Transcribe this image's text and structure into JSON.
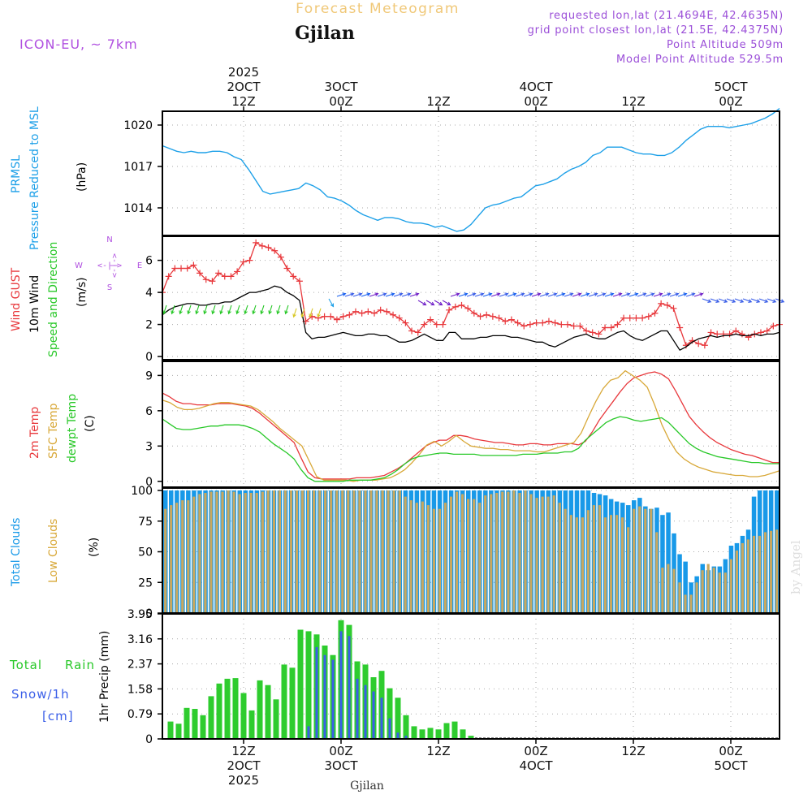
{
  "header": {
    "title": "Forecast Meteogram",
    "location": "Gjilan",
    "model": "ICON-EU, ~ 7km",
    "requested": "requested lon,lat (21.4694E, 42.4635N)",
    "grid_point": "grid point closest lon,lat (21.5E, 42.4375N)",
    "point_altitude": "Point Altitude 509m",
    "model_altitude": "Model Point Altitude 529.5m",
    "footer_location": "Gjilan",
    "credit": "by Angel"
  },
  "colors": {
    "pressure": "#1da0e8",
    "gust": "#e8383c",
    "wind10m": "#000000",
    "temp2m": "#e8383c",
    "sfc_temp": "#d8a838",
    "dewpoint": "#28c828",
    "total_cloud": "#1899e8",
    "low_cloud": "#c8a860",
    "rain": "#2ecc2e",
    "snow": "#3a5ee8",
    "label_purple": "#9b4fd8",
    "compass": "#b050e0"
  },
  "time_axis": {
    "top_labels": [
      {
        "t": 12,
        "lines": [
          "2025",
          "2OCT",
          "12Z"
        ]
      },
      {
        "t": 24,
        "lines": [
          "3OCT",
          "00Z"
        ]
      },
      {
        "t": 36,
        "lines": [
          "12Z"
        ]
      },
      {
        "t": 48,
        "lines": [
          "4OCT",
          "00Z"
        ]
      },
      {
        "t": 60,
        "lines": [
          "12Z"
        ]
      },
      {
        "t": 72,
        "lines": [
          "5OCT",
          "00Z"
        ]
      }
    ],
    "bottom_labels": [
      {
        "t": 12,
        "lines": [
          "12Z",
          "2OCT",
          "2025"
        ]
      },
      {
        "t": 24,
        "lines": [
          "00Z",
          "3OCT"
        ]
      },
      {
        "t": 36,
        "lines": [
          "12Z"
        ]
      },
      {
        "t": 48,
        "lines": [
          "00Z",
          "4OCT"
        ]
      },
      {
        "t": 60,
        "lines": [
          "12Z"
        ]
      },
      {
        "t": 72,
        "lines": [
          "00Z",
          "5OCT"
        ]
      }
    ]
  },
  "chart_data": [
    {
      "type": "line",
      "panel": "pressure",
      "title": "PRMSL Pressure Reduced to MSL",
      "ylabel_lines": [
        "PRMSL",
        "Pressure Reduced to MSL"
      ],
      "unit": "(hPa)",
      "ylim": [
        1012,
        1021
      ],
      "yticks": [
        1014,
        1017,
        1020
      ],
      "series": [
        {
          "name": "PRMSL",
          "values": [
            1018.5,
            1018.3,
            1018.1,
            1018.0,
            1018.1,
            1018.0,
            1018.0,
            1018.1,
            1018.1,
            1018.0,
            1017.7,
            1017.5,
            1016.8,
            1016.0,
            1015.2,
            1015.0,
            1015.1,
            1015.2,
            1015.3,
            1015.4,
            1015.8,
            1015.6,
            1015.3,
            1014.8,
            1014.7,
            1014.5,
            1014.2,
            1013.8,
            1013.5,
            1013.3,
            1013.1,
            1013.3,
            1013.3,
            1013.2,
            1013.0,
            1012.9,
            1012.9,
            1012.8,
            1012.6,
            1012.7,
            1012.5,
            1012.3,
            1012.4,
            1012.8,
            1013.4,
            1014.0,
            1014.2,
            1014.3,
            1014.5,
            1014.7,
            1014.8,
            1015.2,
            1015.6,
            1015.7,
            1015.9,
            1016.1,
            1016.5,
            1016.8,
            1017.0,
            1017.3,
            1017.8,
            1018.0,
            1018.4,
            1018.4,
            1018.4,
            1018.2,
            1018.0,
            1017.9,
            1017.9,
            1017.8,
            1017.8,
            1018.0,
            1018.4,
            1018.9,
            1019.3,
            1019.7,
            1019.9,
            1019.9,
            1019.9,
            1019.8,
            1019.9,
            1020.0,
            1020.1,
            1020.3,
            1020.5,
            1020.8,
            1021.2
          ]
        }
      ]
    },
    {
      "type": "line",
      "panel": "wind",
      "title": "Wind GUST / 10m Wind Speed and Direction",
      "ylabel_lines": [
        "Wind GUST",
        "10m Wind",
        "Speed and Direction"
      ],
      "unit": "(m/s)",
      "compass": {
        "n": "N",
        "s": "S",
        "w": "W",
        "e": "E",
        "arrow": "<-|->"
      },
      "ylim": [
        -0.2,
        7.5
      ],
      "yticks": [
        0,
        2,
        4,
        6
      ],
      "series": [
        {
          "name": "Wind GUST",
          "values": [
            4.0,
            5.0,
            5.5,
            5.5,
            5.5,
            5.7,
            5.2,
            4.8,
            4.7,
            5.2,
            5.0,
            5.0,
            5.3,
            5.9,
            6.0,
            7.1,
            6.9,
            6.8,
            6.6,
            6.2,
            5.5,
            5.0,
            4.7,
            2.2,
            2.5,
            2.4,
            2.5,
            2.5,
            2.3,
            2.5,
            2.6,
            2.8,
            2.7,
            2.8,
            2.7,
            2.9,
            2.8,
            2.6,
            2.4,
            2.1,
            1.6,
            1.5,
            2.0,
            2.3,
            2.0,
            2.0,
            2.9,
            3.1,
            3.2,
            3.0,
            2.7,
            2.5,
            2.6,
            2.5,
            2.4,
            2.2,
            2.3,
            2.1,
            1.9,
            2.0,
            2.1,
            2.1,
            2.2,
            2.1,
            2.0,
            2.0,
            1.9,
            1.9,
            1.6,
            1.5,
            1.4,
            1.8,
            1.8,
            2.0,
            2.4,
            2.4,
            2.4,
            2.4,
            2.5,
            2.7,
            3.3,
            3.2,
            3.0,
            1.8,
            0.7,
            1.0,
            0.8,
            0.7,
            1.5,
            1.4,
            1.4,
            1.4,
            1.6,
            1.4,
            1.2,
            1.4,
            1.5,
            1.6,
            1.9,
            2.0
          ]
        },
        {
          "name": "10m Wind",
          "values": [
            2.6,
            2.9,
            3.1,
            3.2,
            3.3,
            3.3,
            3.2,
            3.2,
            3.3,
            3.3,
            3.4,
            3.4,
            3.6,
            3.8,
            4.0,
            4.0,
            4.1,
            4.2,
            4.4,
            4.3,
            4.0,
            3.8,
            3.5,
            1.5,
            1.1,
            1.2,
            1.2,
            1.3,
            1.4,
            1.5,
            1.4,
            1.3,
            1.3,
            1.4,
            1.4,
            1.3,
            1.3,
            1.1,
            0.9,
            0.9,
            1.0,
            1.2,
            1.4,
            1.2,
            1.0,
            1.0,
            1.5,
            1.5,
            1.1,
            1.1,
            1.1,
            1.2,
            1.2,
            1.3,
            1.3,
            1.3,
            1.2,
            1.2,
            1.1,
            1.0,
            0.9,
            0.9,
            0.7,
            0.6,
            0.8,
            1.0,
            1.2,
            1.3,
            1.4,
            1.2,
            1.1,
            1.1,
            1.3,
            1.5,
            1.6,
            1.3,
            1.1,
            1.0,
            1.2,
            1.4,
            1.6,
            1.6,
            1.0,
            0.4,
            0.6,
            0.9,
            1.1,
            1.2,
            1.3,
            1.2,
            1.3,
            1.3,
            1.4,
            1.3,
            1.3,
            1.4,
            1.3,
            1.4,
            1.4,
            1.5
          ]
        }
      ]
    },
    {
      "type": "line",
      "panel": "temperature",
      "title": "2m Temp / SFC Temp / dewpt Temp",
      "ylabel_lines": [
        "2m Temp",
        "SFC Temp",
        "dewpt Temp"
      ],
      "unit": "(C)",
      "ylim": [
        -0.5,
        10.2
      ],
      "yticks": [
        0,
        3,
        6,
        9
      ],
      "series": [
        {
          "name": "2m Temp",
          "values": [
            7.5,
            7.2,
            6.8,
            6.6,
            6.6,
            6.5,
            6.5,
            6.5,
            6.6,
            6.6,
            6.6,
            6.5,
            6.4,
            6.2,
            5.8,
            5.3,
            4.8,
            4.3,
            3.8,
            3.3,
            2.0,
            0.8,
            0.3,
            0.2,
            0.2,
            0.2,
            0.2,
            0.2,
            0.3,
            0.3,
            0.3,
            0.4,
            0.5,
            0.8,
            1.1,
            1.5,
            2.0,
            2.5,
            3.0,
            3.3,
            3.5,
            3.5,
            3.9,
            3.9,
            3.8,
            3.6,
            3.5,
            3.4,
            3.3,
            3.3,
            3.2,
            3.1,
            3.1,
            3.2,
            3.2,
            3.1,
            3.1,
            3.2,
            3.2,
            3.2,
            3.1,
            3.4,
            4.2,
            5.2,
            6.0,
            6.8,
            7.6,
            8.3,
            8.8,
            9.0,
            9.2,
            9.3,
            9.1,
            8.7,
            7.7,
            6.6,
            5.5,
            4.8,
            4.2,
            3.7,
            3.3,
            3.0,
            2.7,
            2.5,
            2.3,
            2.2,
            2.0,
            1.8,
            1.6,
            1.6
          ]
        },
        {
          "name": "SFC Temp",
          "values": [
            6.9,
            6.7,
            6.3,
            6.1,
            6.1,
            6.2,
            6.4,
            6.6,
            6.7,
            6.7,
            6.6,
            6.5,
            6.4,
            6.1,
            5.6,
            5.1,
            4.5,
            4.0,
            3.5,
            3.0,
            1.7,
            0.4,
            0.1,
            0.1,
            0.1,
            0.1,
            0.0,
            0.1,
            0.1,
            0.1,
            0.2,
            0.3,
            0.6,
            1.0,
            1.6,
            2.3,
            3.1,
            3.4,
            3.0,
            3.4,
            3.9,
            3.4,
            3.0,
            2.9,
            2.8,
            2.8,
            2.7,
            2.7,
            2.6,
            2.6,
            2.6,
            2.5,
            2.5,
            2.7,
            2.9,
            3.1,
            3.3,
            4.1,
            5.5,
            6.8,
            7.9,
            8.6,
            8.8,
            9.4,
            9.0,
            8.6,
            8.0,
            6.5,
            4.8,
            3.5,
            2.5,
            1.9,
            1.5,
            1.2,
            1.0,
            0.8,
            0.7,
            0.6,
            0.5,
            0.5,
            0.4,
            0.4,
            0.5,
            0.7,
            0.9
          ]
        },
        {
          "name": "dewpt Temp",
          "values": [
            5.3,
            4.9,
            4.5,
            4.4,
            4.4,
            4.5,
            4.6,
            4.7,
            4.7,
            4.8,
            4.8,
            4.8,
            4.7,
            4.5,
            4.2,
            3.7,
            3.2,
            2.8,
            2.4,
            1.9,
            1.0,
            0.3,
            0.0,
            0.0,
            0.0,
            0.0,
            0.0,
            0.1,
            0.1,
            0.1,
            0.1,
            0.2,
            0.3,
            0.6,
            1.0,
            1.5,
            1.9,
            2.1,
            2.2,
            2.3,
            2.4,
            2.4,
            2.3,
            2.3,
            2.3,
            2.3,
            2.2,
            2.2,
            2.2,
            2.2,
            2.2,
            2.2,
            2.3,
            2.3,
            2.3,
            2.4,
            2.4,
            2.4,
            2.5,
            2.5,
            2.8,
            3.5,
            4.0,
            4.5,
            5.0,
            5.3,
            5.5,
            5.4,
            5.2,
            5.1,
            5.2,
            5.3,
            5.4,
            5.0,
            4.4,
            3.8,
            3.2,
            2.8,
            2.5,
            2.3,
            2.1,
            2.0,
            1.9,
            1.8,
            1.7,
            1.6,
            1.6,
            1.5,
            1.5,
            1.5
          ]
        }
      ]
    },
    {
      "type": "bar",
      "panel": "clouds",
      "title": "Total Clouds / Low Clouds",
      "ylabel_lines": [
        "Total Clouds",
        "Low Clouds"
      ],
      "unit": "(%)",
      "ylim": [
        0,
        102
      ],
      "yticks": [
        0,
        25,
        50,
        75,
        100
      ],
      "series": [
        {
          "name": "Total Clouds",
          "values": [
            100,
            100,
            100,
            100,
            100,
            100,
            100,
            100,
            100,
            100,
            100,
            100,
            100,
            100,
            100,
            100,
            100,
            100,
            100,
            100,
            100,
            100,
            100,
            100,
            100,
            100,
            100,
            100,
            100,
            100,
            100,
            100,
            100,
            100,
            100,
            100,
            100,
            100,
            100,
            100,
            100,
            100,
            100,
            100,
            100,
            100,
            100,
            100,
            100,
            100,
            100,
            100,
            100,
            100,
            100,
            100,
            100,
            100,
            100,
            100,
            100,
            100,
            100,
            100,
            100,
            100,
            100,
            100,
            100,
            100,
            100,
            100,
            100,
            100,
            100,
            98,
            97,
            96,
            93,
            91,
            90,
            88,
            92,
            94,
            87,
            85,
            86,
            80,
            82,
            65,
            48,
            42,
            25,
            30,
            40,
            35,
            38,
            38,
            44,
            55,
            57,
            63,
            68,
            95,
            100,
            100,
            100,
            100
          ]
        },
        {
          "name": "Low Clouds",
          "values": [
            85,
            88,
            90,
            92,
            95,
            97,
            98,
            99,
            99,
            100,
            99,
            97,
            98,
            98,
            99,
            100,
            100,
            100,
            100,
            100,
            100,
            100,
            100,
            100,
            100,
            100,
            100,
            100,
            100,
            100,
            100,
            100,
            100,
            100,
            100,
            95,
            92,
            90,
            91,
            88,
            85,
            90,
            95,
            99,
            97,
            93,
            90,
            96,
            97,
            98,
            99,
            100,
            98,
            100,
            97,
            94,
            95,
            96,
            90,
            85,
            80,
            78,
            84,
            88,
            88,
            78,
            80,
            78,
            70,
            85,
            87,
            85,
            66,
            37,
            40,
            36,
            25,
            15,
            25,
            35,
            40,
            37,
            33,
            44,
            51,
            57,
            60,
            63,
            66,
            67,
            68
          ]
        }
      ]
    },
    {
      "type": "bar",
      "panel": "precip",
      "title": "Total Rain / Snow 1hr Precip",
      "ylabel_left_lines": [
        "Total",
        "Rain",
        "Snow/1h",
        "[cm]"
      ],
      "ylabel": "1hr Precip (mm)",
      "ylim": [
        0,
        3.95
      ],
      "yticks": [
        0,
        0.79,
        1.58,
        2.37,
        3.16,
        3.95
      ],
      "ytick_labels": [
        "0",
        "0.79",
        "1.58",
        "2.37",
        "3.16",
        "3.95"
      ],
      "series": [
        {
          "name": "Total Rain",
          "values": [
            0.55,
            0.48,
            0.98,
            0.95,
            0.75,
            1.35,
            1.75,
            1.9,
            1.92,
            1.45,
            0.9,
            1.85,
            1.7,
            1.25,
            2.35,
            2.25,
            3.45,
            3.4,
            3.3,
            2.95,
            2.65,
            3.75,
            3.6,
            2.45,
            2.35,
            1.95,
            2.15,
            1.6,
            1.3,
            0.75,
            0.4,
            0.3,
            0.35,
            0.3,
            0.5,
            0.55,
            0.3,
            0.1
          ]
        },
        {
          "name": "Snow/1h",
          "values": [
            0,
            0,
            0,
            0,
            0,
            0,
            0,
            0,
            0,
            0,
            0,
            0,
            0,
            0,
            0,
            0,
            0,
            0.4,
            2.9,
            2.65,
            2.5,
            3.4,
            3.25,
            1.9,
            1.7,
            1.5,
            1.3,
            0.65,
            0.2,
            0.1,
            0,
            0,
            0,
            0,
            0,
            0,
            0,
            0
          ]
        }
      ]
    }
  ]
}
